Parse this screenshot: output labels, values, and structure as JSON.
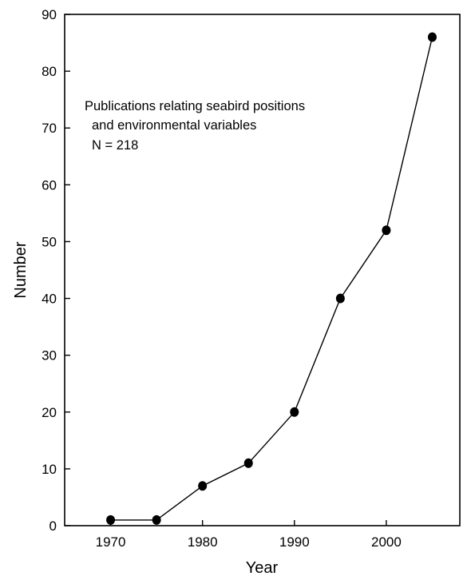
{
  "chart_data": {
    "type": "line",
    "xlabel": "Year",
    "ylabel": "Number",
    "xlim": [
      1965,
      2008
    ],
    "ylim": [
      0,
      90
    ],
    "xticks": [
      1970,
      1980,
      1990,
      2000
    ],
    "yticks": [
      0,
      10,
      20,
      30,
      40,
      50,
      60,
      70,
      80,
      90
    ],
    "grid": false,
    "series": [
      {
        "x": [
          1970,
          1975,
          1980,
          1985,
          1990,
          1995,
          2000,
          2005
        ],
        "y": [
          1,
          1,
          7,
          11,
          20,
          40,
          52,
          86
        ]
      }
    ],
    "annotation": [
      "Publications relating seabird positions",
      "and environmental variables",
      "N = 218"
    ]
  }
}
